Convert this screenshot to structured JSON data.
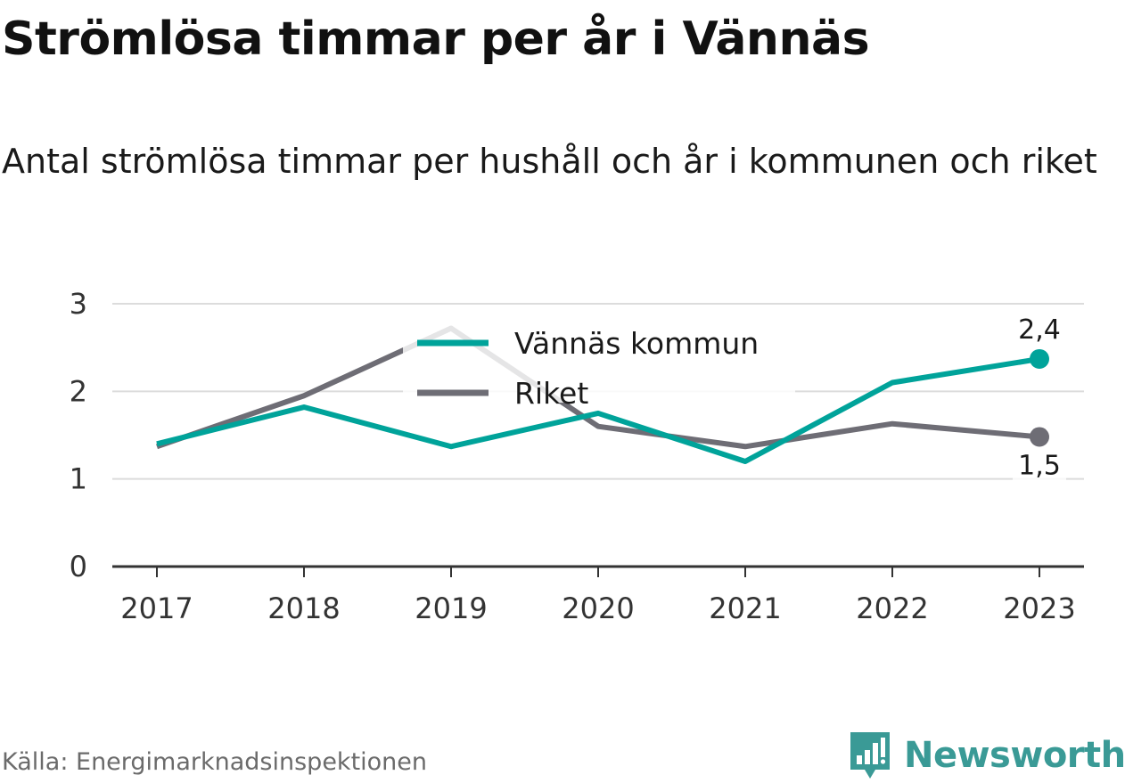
{
  "title": "Strömlösa timmar per år i Vännäs",
  "subtitle": "Antal strömlösa timmar per hushåll och år i kommunen och riket",
  "source": "Källa: Energimarknadsinspektionen",
  "logo": {
    "text": "Newsworthy",
    "icon": "newsworthy-logo-icon",
    "color": "#3a9a96"
  },
  "chart_data": {
    "type": "line",
    "x": [
      "2017",
      "2018",
      "2019",
      "2020",
      "2021",
      "2022",
      "2023"
    ],
    "ylim": [
      0,
      3
    ],
    "yticks": [
      "0",
      "1",
      "2",
      "3"
    ],
    "grid": true,
    "legend_position": "top-center",
    "series": [
      {
        "name": "Vännäs kommun",
        "color": "#00a39a",
        "values": [
          1.4,
          1.82,
          1.37,
          1.75,
          1.2,
          2.1,
          2.37
        ],
        "end_label": "2,4"
      },
      {
        "name": "Riket",
        "color": "#6e6d75",
        "values": [
          1.37,
          1.95,
          2.72,
          1.6,
          1.37,
          1.63,
          1.48
        ],
        "end_label": "1,5"
      }
    ]
  }
}
